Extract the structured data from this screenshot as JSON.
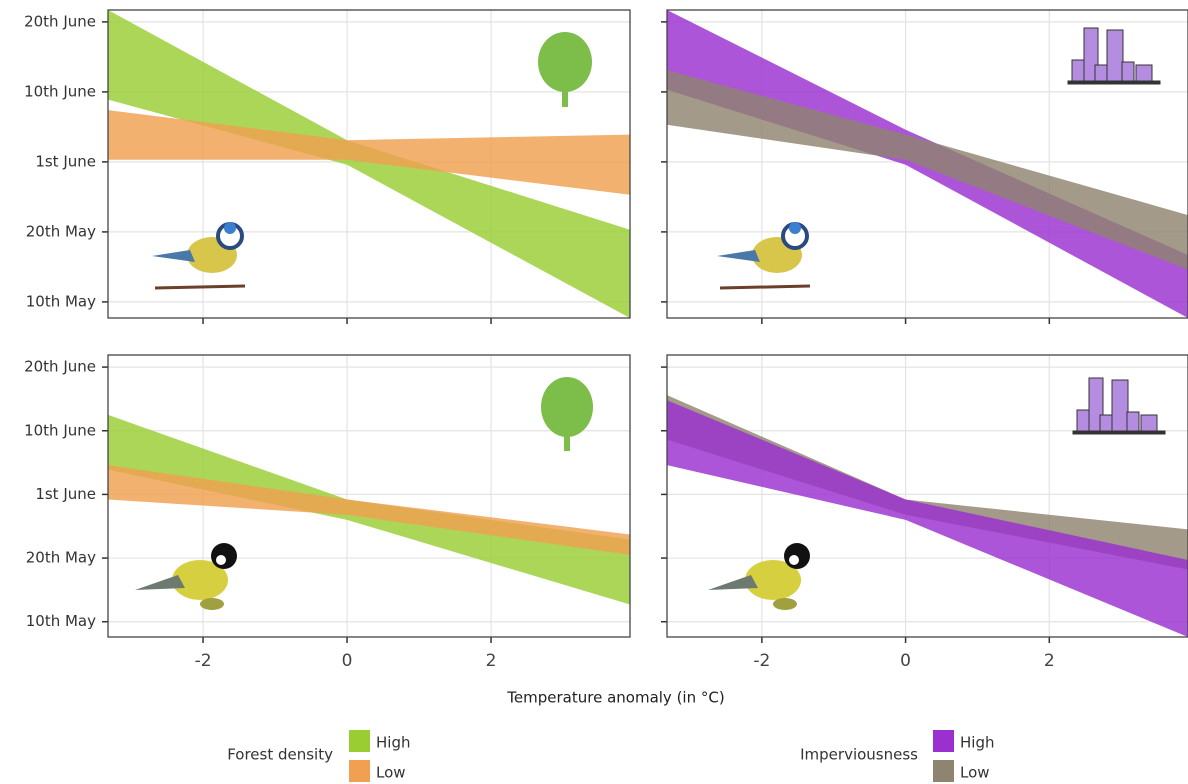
{
  "chart_data": [
    {
      "type": "band",
      "xlim": [
        -3.32,
        3.93
      ],
      "ylim": [
        127.7,
        171.7
      ],
      "xticks": [
        -2,
        0,
        2
      ],
      "tick_labels": {
        "x": false,
        "y": true
      },
      "yticks": [
        {
          "value": 130,
          "label": "10th May"
        },
        {
          "value": 140,
          "label": "20th May"
        },
        {
          "value": 150,
          "label": "1st June"
        },
        {
          "value": 160,
          "label": "10th June"
        },
        {
          "value": 170,
          "label": "20th June"
        }
      ],
      "legend_title": "Forest density",
      "x": [
        -3.32,
        0,
        3.93
      ],
      "series": [
        {
          "name": "High",
          "color": "#9acd32",
          "upper": [
            171.7,
            153.1,
            140.3
          ],
          "lower": [
            158.9,
            149.6,
            127.7
          ]
        },
        {
          "name": "Low",
          "color": "#f0a050",
          "upper": [
            157.4,
            153.1,
            153.9
          ],
          "lower": [
            150.3,
            150.3,
            145.3
          ]
        }
      ]
    },
    {
      "type": "band",
      "xlim": [
        -3.32,
        3.93
      ],
      "ylim": [
        127.7,
        171.7
      ],
      "xticks": [
        -2,
        0,
        2
      ],
      "tick_labels": {
        "x": false,
        "y": false
      },
      "yticks": [
        130,
        140,
        150,
        160,
        170
      ],
      "legend_title": "Imperviousness",
      "x": [
        -3.32,
        0,
        3.93
      ],
      "series": [
        {
          "name": "High",
          "color": "#9b30d0",
          "upper": [
            171.7,
            154.6,
            136.7
          ],
          "lower": [
            160.3,
            149.6,
            127.7
          ]
        },
        {
          "name": "Low",
          "color": "#8f8470",
          "upper": [
            163.1,
            153.9,
            142.4
          ],
          "lower": [
            155.3,
            150.3,
            134.6
          ]
        }
      ]
    },
    {
      "type": "band",
      "xlim": [
        -3.32,
        3.93
      ],
      "ylim": [
        127.6,
        171.9
      ],
      "xticks": [
        -2,
        0,
        2
      ],
      "tick_labels": {
        "x": true,
        "y": true
      },
      "yticks": [
        {
          "value": 130,
          "label": "10th May"
        },
        {
          "value": 140,
          "label": "20th May"
        },
        {
          "value": 150,
          "label": "1st June"
        },
        {
          "value": 160,
          "label": "10th June"
        },
        {
          "value": 170,
          "label": "20th June"
        }
      ],
      "x": [
        -3.32,
        0,
        3.93
      ],
      "series": [
        {
          "name": "High",
          "color": "#9acd32",
          "upper": [
            162.5,
            149.2,
            142.9
          ],
          "lower": [
            153.9,
            146.0,
            132.7
          ]
        },
        {
          "name": "Low",
          "color": "#f0a050",
          "upper": [
            154.6,
            149.2,
            143.7
          ],
          "lower": [
            149.2,
            146.8,
            140.5
          ]
        }
      ]
    },
    {
      "type": "band",
      "xlim": [
        -3.32,
        3.93
      ],
      "ylim": [
        127.6,
        171.9
      ],
      "xticks": [
        -2,
        0,
        2
      ],
      "tick_labels": {
        "x": true,
        "y": false
      },
      "yticks": [
        130,
        140,
        150,
        160,
        170
      ],
      "x": [
        -3.32,
        0,
        3.93
      ],
      "series": [
        {
          "name": "Low",
          "color": "#8f8470",
          "upper": [
            165.6,
            149.2,
            144.5
          ],
          "lower": [
            158.6,
            146.8,
            138.2
          ]
        },
        {
          "name": "High",
          "color": "#9b30d0",
          "upper": [
            164.8,
            149.2,
            139.7
          ],
          "lower": [
            154.6,
            146.0,
            127.6
          ]
        }
      ]
    }
  ],
  "xlabel": "Temperature anomaly (in °C)"
}
